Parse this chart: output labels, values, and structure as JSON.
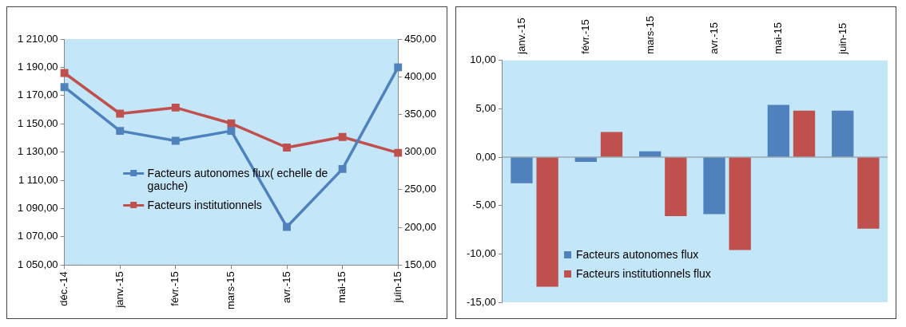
{
  "chart_data": [
    {
      "type": "line",
      "categories": [
        "déc.-14",
        "janv.-15",
        "févr.-15",
        "mars-15",
        "avr.-15",
        "mai-15",
        "juin-15"
      ],
      "series": [
        {
          "name": "Facteurs autonomes flux( echelle de gauche)",
          "color": "#4f81bd",
          "values": [
            1176,
            1145,
            1138,
            1145,
            1077,
            1118,
            1190
          ]
        },
        {
          "name": "Facteurs institutionnels",
          "color": "#c0504d",
          "values": [
            405,
            351,
            359,
            338,
            306,
            320,
            299
          ],
          "axis": "y2"
        }
      ],
      "ylim": [
        1050,
        1210
      ],
      "yticks": [
        {
          "value": 1050,
          "label": "1 050,00"
        },
        {
          "value": 1070,
          "label": "1 070,00"
        },
        {
          "value": 1090,
          "label": "1 090,00"
        },
        {
          "value": 1110,
          "label": "1 110,00"
        },
        {
          "value": 1130,
          "label": "1 130,00"
        },
        {
          "value": 1150,
          "label": "1 150,00"
        },
        {
          "value": 1170,
          "label": "1 170,00"
        },
        {
          "value": 1190,
          "label": "1 190,00"
        },
        {
          "value": 1210,
          "label": "1 210,00"
        }
      ],
      "y2lim": [
        150,
        450
      ],
      "y2ticks": [
        {
          "value": 150,
          "label": "150,00"
        },
        {
          "value": 200,
          "label": "200,00"
        },
        {
          "value": 250,
          "label": "250,00"
        },
        {
          "value": 300,
          "label": "300,00"
        },
        {
          "value": 350,
          "label": "350,00"
        },
        {
          "value": 400,
          "label": "400,00"
        },
        {
          "value": 450,
          "label": "450,00"
        }
      ],
      "legend": "center",
      "marker": "square",
      "line_style": "solid"
    },
    {
      "type": "bar",
      "categories": [
        "janv.-15",
        "févr.-15",
        "mars-15",
        "avr.-15",
        "mai-15",
        "juin-15"
      ],
      "series": [
        {
          "name": "Facteurs autonomes flux",
          "color": "#4f81bd",
          "values": [
            -2.7,
            -0.5,
            0.6,
            -5.9,
            5.4,
            4.8
          ]
        },
        {
          "name": "Facteurs institutionnels flux",
          "color": "#c0504d",
          "values": [
            -13.4,
            2.6,
            -6.1,
            -9.6,
            4.8,
            -7.4
          ]
        }
      ],
      "ylim": [
        -15,
        10
      ],
      "yticks": [
        {
          "value": -15,
          "label": "-15,00"
        },
        {
          "value": -10,
          "label": "-10,00"
        },
        {
          "value": -5,
          "label": "-5,00"
        },
        {
          "value": 0,
          "label": "0,00"
        },
        {
          "value": 5,
          "label": "5,00"
        },
        {
          "value": 10,
          "label": "10,00"
        }
      ],
      "legend": "bottom left"
    }
  ]
}
